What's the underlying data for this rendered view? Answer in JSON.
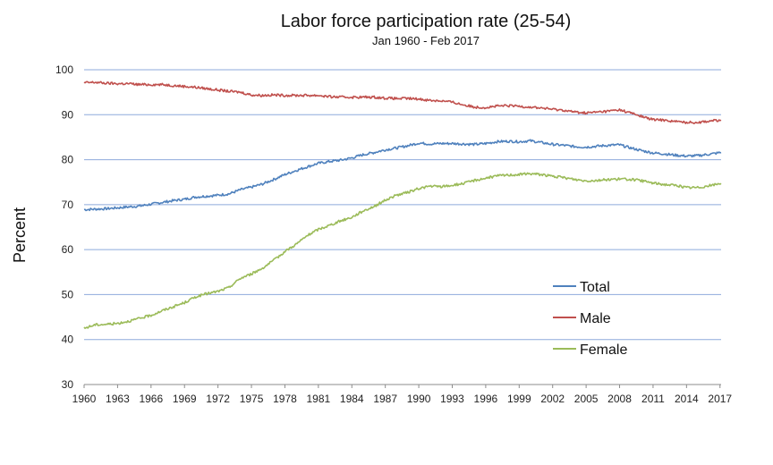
{
  "chart_data": {
    "type": "line",
    "title": "Labor force participation rate (25-54)",
    "subtitle": "Jan 1960 - Feb 2017",
    "ylabel": "Percent",
    "xlabel": "",
    "xlim": [
      1960,
      2017.1
    ],
    "ylim": [
      30,
      100
    ],
    "x_ticks": [
      "1960",
      "1963",
      "1966",
      "1969",
      "1972",
      "1975",
      "1978",
      "1981",
      "1984",
      "1987",
      "1990",
      "1993",
      "1996",
      "1999",
      "2002",
      "2005",
      "2008",
      "2011",
      "2014",
      "2017"
    ],
    "y_ticks": [
      30,
      40,
      50,
      60,
      70,
      80,
      90,
      100
    ],
    "grid": "horizontal",
    "legend_position": "right",
    "series": [
      {
        "name": "Total",
        "color": "#4f81bd",
        "x": [
          1960,
          1961,
          1962,
          1963,
          1964,
          1965,
          1966,
          1967,
          1968,
          1969,
          1970,
          1971,
          1972,
          1973,
          1974,
          1975,
          1976,
          1977,
          1978,
          1979,
          1980,
          1981,
          1982,
          1983,
          1984,
          1985,
          1986,
          1987,
          1988,
          1989,
          1990,
          1991,
          1992,
          1993,
          1994,
          1995,
          1996,
          1997,
          1998,
          1999,
          2000,
          2001,
          2002,
          2003,
          2004,
          2005,
          2006,
          2007,
          2008,
          2009,
          2010,
          2011,
          2012,
          2013,
          2014,
          2015,
          2016,
          2017.1
        ],
        "values": [
          68.9,
          69.0,
          69.1,
          69.3,
          69.5,
          69.7,
          70.1,
          70.5,
          70.9,
          71.2,
          71.7,
          71.9,
          72.1,
          72.4,
          73.3,
          73.9,
          74.6,
          75.6,
          76.7,
          77.6,
          78.4,
          79.2,
          79.6,
          79.9,
          80.4,
          81.1,
          81.6,
          82.2,
          82.6,
          83.1,
          83.7,
          83.5,
          83.6,
          83.6,
          83.5,
          83.4,
          83.6,
          84.0,
          84.1,
          84.0,
          84.2,
          83.8,
          83.4,
          83.2,
          82.9,
          82.8,
          83.0,
          83.2,
          83.3,
          82.6,
          82.0,
          81.5,
          81.3,
          81.0,
          80.8,
          80.9,
          81.2,
          81.6
        ]
      },
      {
        "name": "Male",
        "color": "#c0504d",
        "x": [
          1960,
          1961,
          1962,
          1963,
          1964,
          1965,
          1966,
          1967,
          1968,
          1969,
          1970,
          1971,
          1972,
          1973,
          1974,
          1975,
          1976,
          1977,
          1978,
          1979,
          1980,
          1981,
          1982,
          1983,
          1984,
          1985,
          1986,
          1987,
          1988,
          1989,
          1990,
          1991,
          1992,
          1993,
          1994,
          1995,
          1996,
          1997,
          1998,
          1999,
          2000,
          2001,
          2002,
          2003,
          2004,
          2005,
          2006,
          2007,
          2008,
          2009,
          2010,
          2011,
          2012,
          2013,
          2014,
          2015,
          2016,
          2017.1
        ],
        "values": [
          97.1,
          97.2,
          97.0,
          96.9,
          96.9,
          96.7,
          96.7,
          96.7,
          96.5,
          96.3,
          96.1,
          95.8,
          95.5,
          95.2,
          95.0,
          94.4,
          94.3,
          94.4,
          94.3,
          94.3,
          94.3,
          94.3,
          94.0,
          93.9,
          93.9,
          93.9,
          93.9,
          93.7,
          93.6,
          93.6,
          93.5,
          93.2,
          93.1,
          92.8,
          92.2,
          91.7,
          91.6,
          91.9,
          92.0,
          91.9,
          91.7,
          91.5,
          91.2,
          91.0,
          90.6,
          90.4,
          90.6,
          90.8,
          91.1,
          90.4,
          89.6,
          88.9,
          88.8,
          88.5,
          88.3,
          88.3,
          88.6,
          88.8
        ]
      },
      {
        "name": "Female",
        "color": "#9bbb59",
        "x": [
          1960,
          1961,
          1962,
          1963,
          1964,
          1965,
          1966,
          1967,
          1968,
          1969,
          1970,
          1971,
          1972,
          1973,
          1974,
          1975,
          1976,
          1977,
          1978,
          1979,
          1980,
          1981,
          1982,
          1983,
          1984,
          1985,
          1986,
          1987,
          1988,
          1989,
          1990,
          1991,
          1992,
          1993,
          1994,
          1995,
          1996,
          1997,
          1998,
          1999,
          2000,
          2001,
          2002,
          2003,
          2004,
          2005,
          2006,
          2007,
          2008,
          2009,
          2010,
          2011,
          2012,
          2013,
          2014,
          2015,
          2016,
          2017.1
        ],
        "values": [
          42.5,
          43.3,
          43.4,
          43.6,
          44.1,
          44.7,
          45.4,
          46.4,
          47.3,
          48.2,
          49.5,
          50.2,
          50.7,
          51.6,
          53.6,
          54.6,
          55.9,
          57.6,
          59.6,
          61.2,
          63.1,
          64.5,
          65.4,
          66.4,
          67.2,
          68.6,
          69.6,
          71.0,
          72.1,
          72.7,
          73.6,
          74.1,
          74.0,
          74.3,
          74.7,
          75.4,
          75.9,
          76.4,
          76.6,
          76.7,
          76.9,
          76.7,
          76.3,
          76.0,
          75.6,
          75.3,
          75.4,
          75.6,
          75.7,
          75.6,
          75.3,
          74.8,
          74.5,
          74.3,
          73.8,
          73.8,
          74.2,
          74.7
        ]
      }
    ]
  }
}
